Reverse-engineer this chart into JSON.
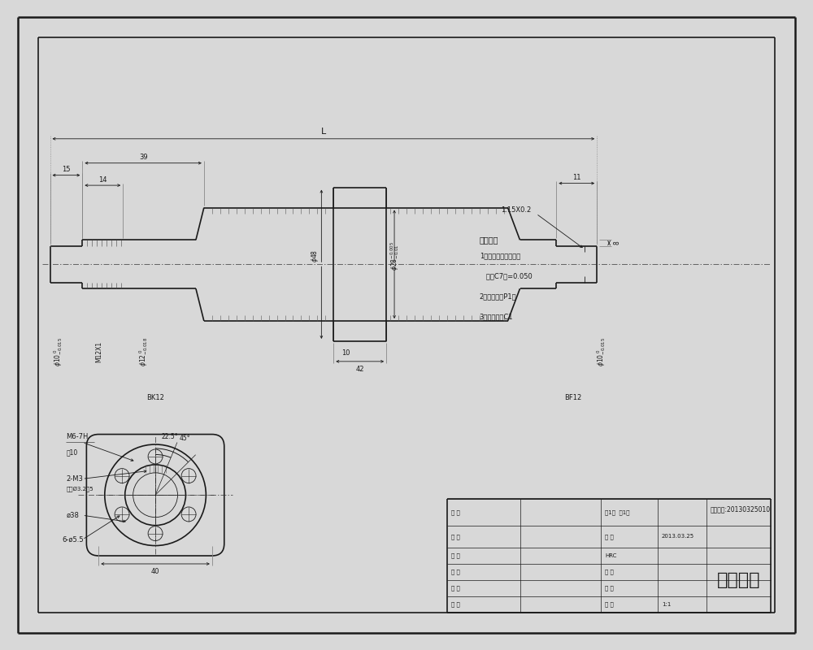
{
  "bg_color": "#d8d8d8",
  "drawing_bg": "#e8e8e8",
  "paper_bg": "#f2f2f2",
  "line_color": "#1a1a1a",
  "title": "滚珠丝杠",
  "drawing_number": "图纸编号:20130325010",
  "scale": "1:1",
  "date": "2013.03.25",
  "tech_req_title": "技术要求",
  "tech_req": [
    "1、台湾进口滚珠丝杠",
    "   精度C7级=0.050",
    "2、螺母配合P1级",
    "3、未注倒角C1"
  ],
  "tb_row1": [
    "设 计",
    "比 例",
    "1:1"
  ],
  "tb_row2": [
    "核 对",
    "材 料",
    ""
  ],
  "tb_row3": [
    "审 核",
    "重 量",
    ""
  ],
  "tb_row4": [
    "批 准",
    "HRC",
    ""
  ],
  "tb_row5a": [
    "客 户",
    "日 期",
    "2013.03.25"
  ],
  "tb_row5b": [
    "名 称",
    "第1页  共1页",
    ""
  ]
}
